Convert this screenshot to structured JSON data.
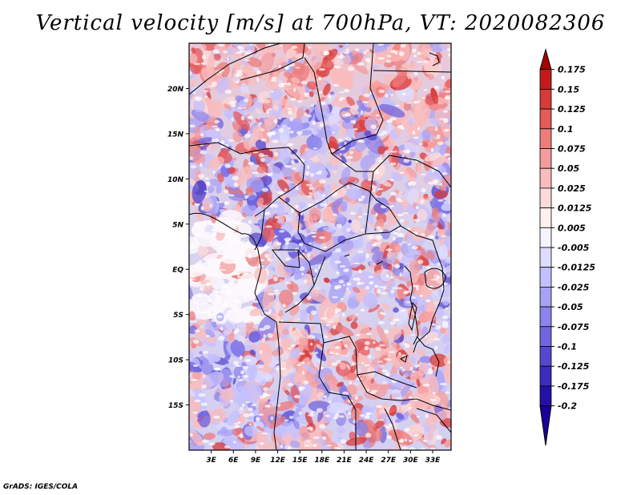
{
  "title": "Vertical velocity [m/s] at 700hPa, VT: 2020082306",
  "credit": "GrADS: IGES/COLA",
  "map": {
    "lon_labels": [
      "3E",
      "6E",
      "9E",
      "12E",
      "15E",
      "18E",
      "21E",
      "24E",
      "27E",
      "30E",
      "33E"
    ],
    "lat_labels": [
      "20N",
      "15N",
      "10N",
      "5N",
      "EQ",
      "5S",
      "10S",
      "15S"
    ]
  },
  "colorbar": {
    "levels": [
      "0.175",
      "0.15",
      "0.125",
      "0.1",
      "0.075",
      "0.05",
      "0.025",
      "0.0125",
      "0.005",
      "-0.005",
      "-0.0125",
      "-0.025",
      "-0.05",
      "-0.075",
      "-0.1",
      "-0.125",
      "-0.175",
      "-0.2"
    ],
    "colors": [
      "#a80000",
      "#c41a1a",
      "#d83a3a",
      "#e55a5a",
      "#ee7c7c",
      "#f49c9c",
      "#f9bcbc",
      "#fcdada",
      "#fff0f0",
      "#f4f4ff",
      "#dedcff",
      "#c4c0ff",
      "#a8a2f5",
      "#8c84ec",
      "#7066e0",
      "#5448cf",
      "#3a2cbd",
      "#2410a8",
      "#18009a"
    ]
  }
}
